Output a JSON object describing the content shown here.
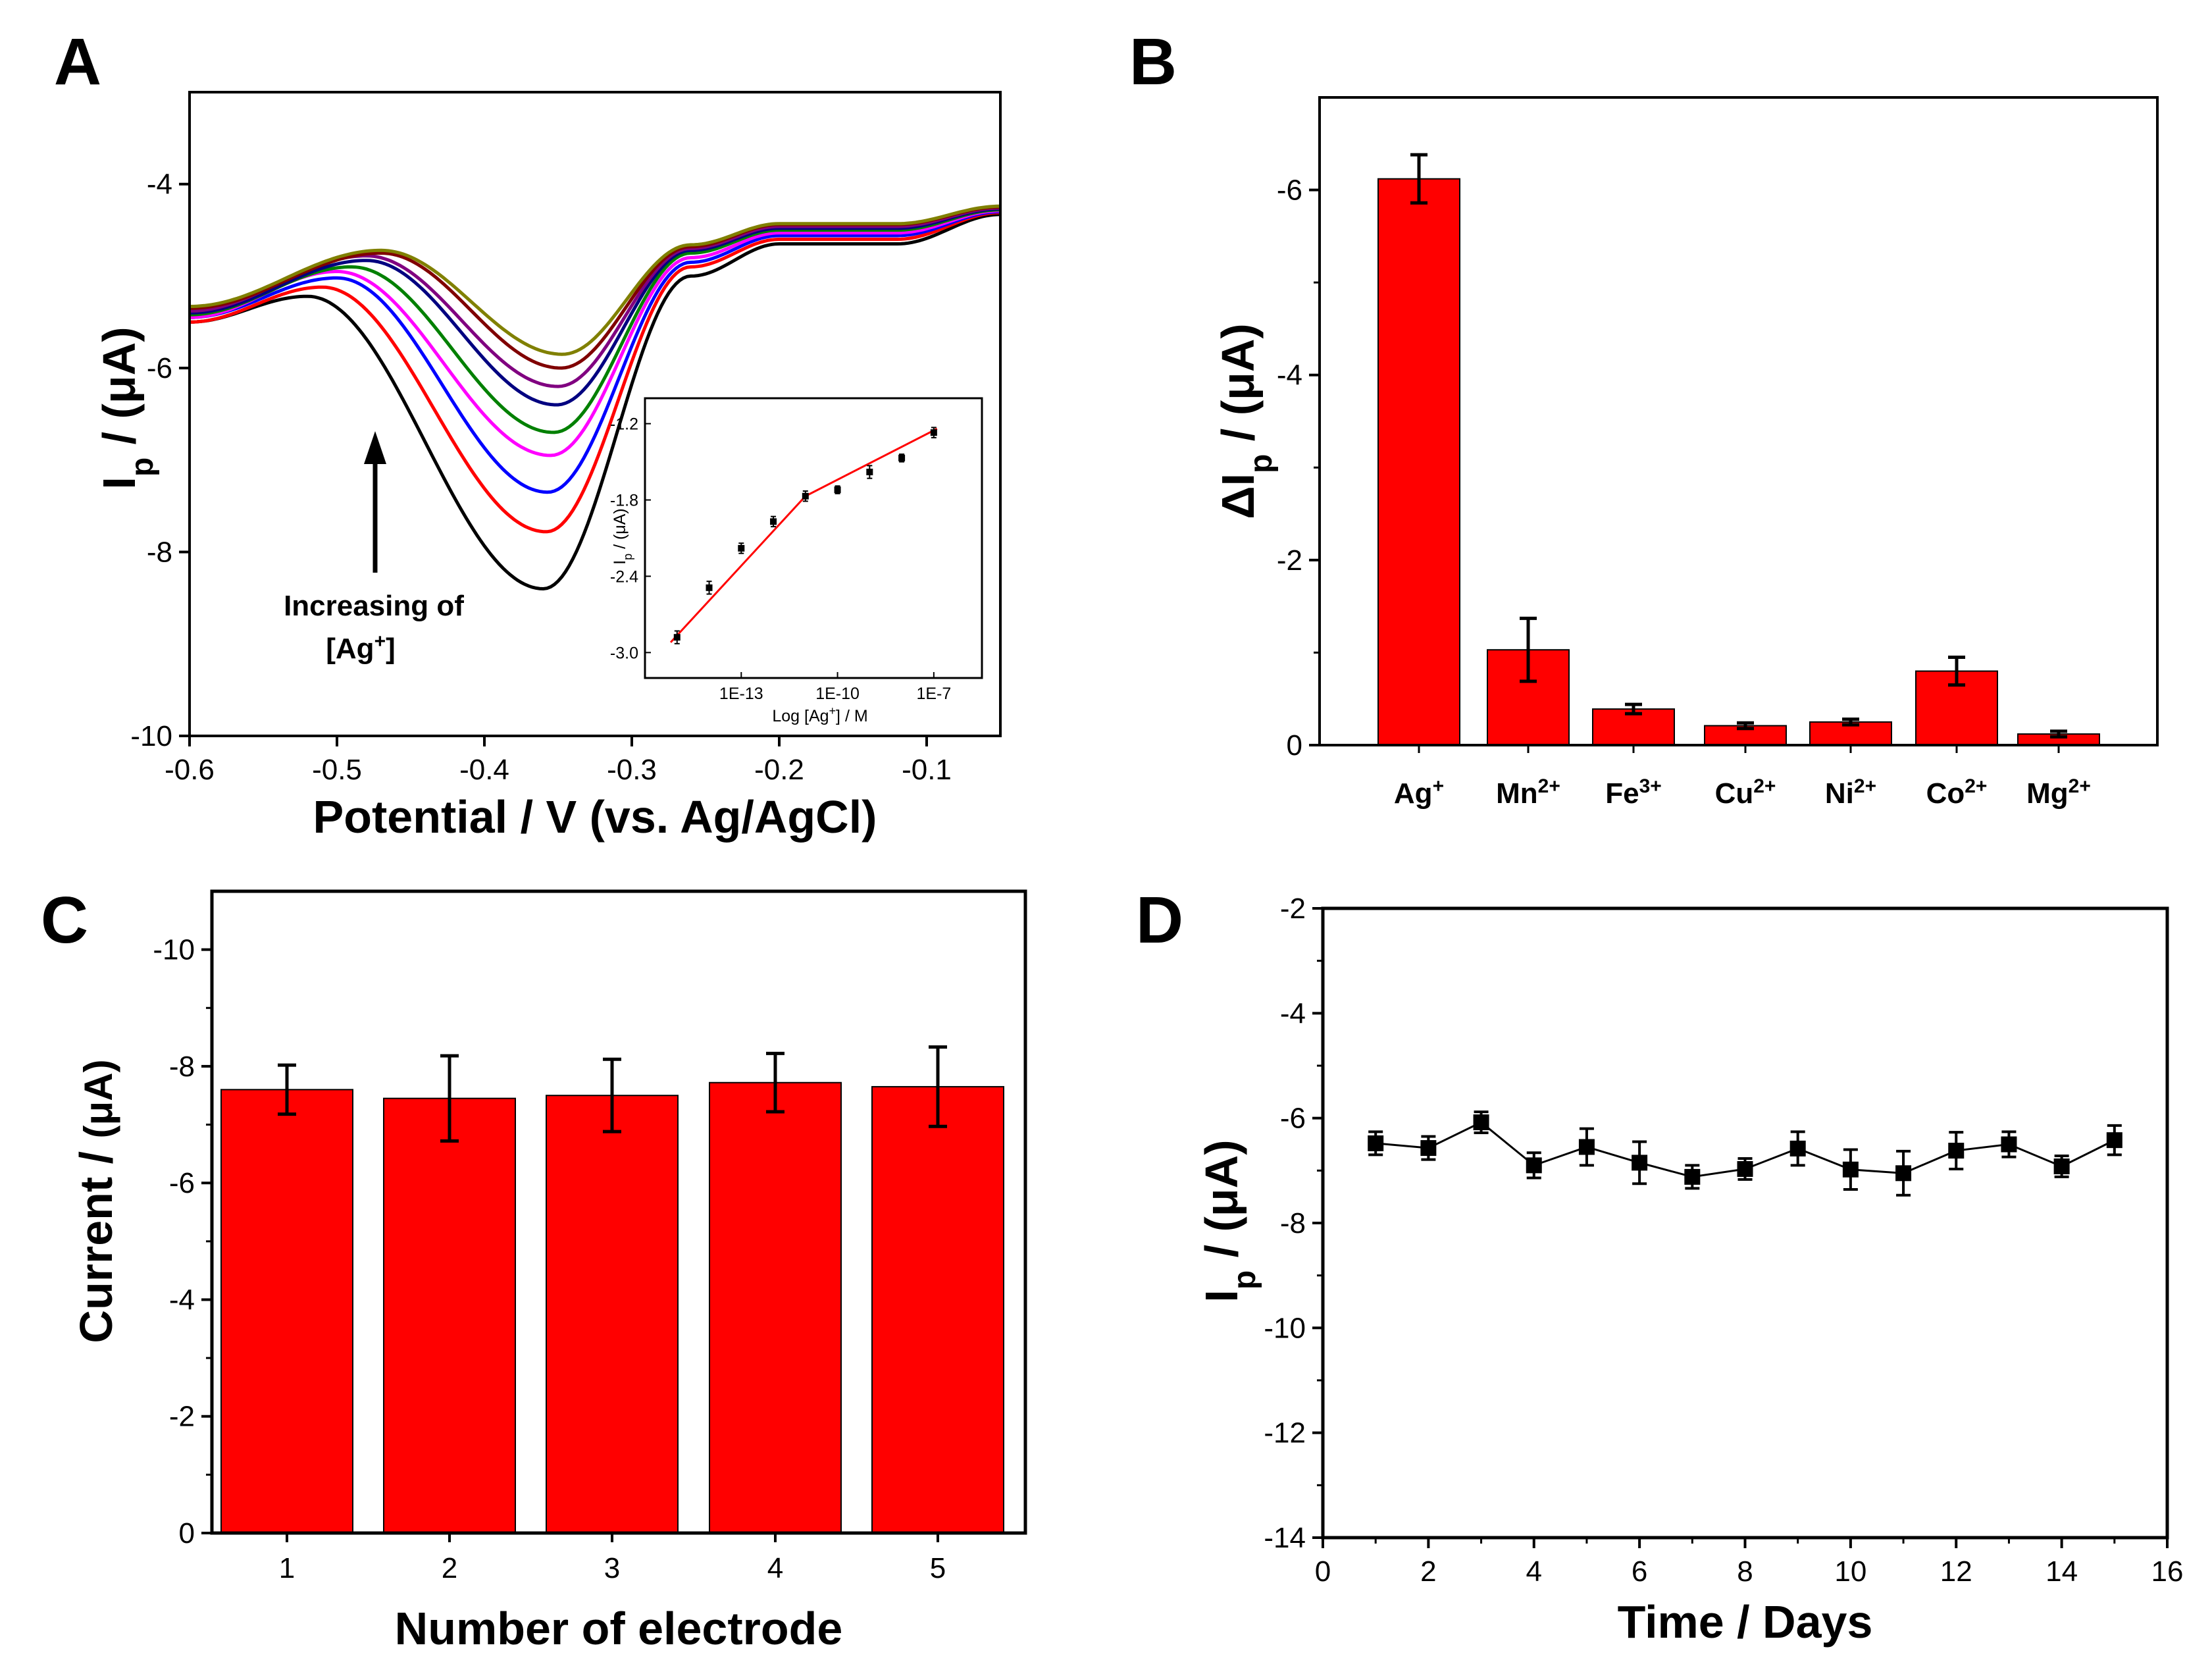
{
  "chart_data": [
    {
      "panel": "A",
      "type": "line",
      "xlabel": "Potential / V (vs. Ag/AgCl)",
      "ylabel": "I",
      "ylabel_sub": "p",
      "ylabel_unit": " / (μA)",
      "xlim": [
        -0.6,
        -0.05
      ],
      "ylim": [
        -10,
        -3
      ],
      "xticks": [
        -0.6,
        -0.5,
        -0.4,
        -0.3,
        -0.2,
        -0.1
      ],
      "xtick_labels": [
        "-0.6",
        "-0.5",
        "-0.4",
        "-0.3",
        "-0.2",
        "-0.1"
      ],
      "yticks": [
        -4,
        -6,
        -8,
        -10
      ],
      "ytick_labels": [
        "-4",
        "-6",
        "-8",
        "-10"
      ],
      "annotation_line1": "Increasing of",
      "annotation_line2_a": "[Ag",
      "annotation_line2_sup": "+",
      "annotation_line2_b": "]",
      "series": [
        {
          "name": "s1",
          "color": "#000000",
          "start": -5.5,
          "hump_x": -0.52,
          "hump_y": -5.22,
          "valley_x": -0.36,
          "valley_y": -8.4,
          "shoulder_x": -0.26,
          "shoulder_y": -5.0,
          "plateau_y": -4.65,
          "end": -4.33
        },
        {
          "name": "s2",
          "color": "#ff0000",
          "start": -5.5,
          "hump_x": -0.51,
          "hump_y": -5.12,
          "valley_x": -0.358,
          "valley_y": -7.78,
          "shoulder_x": -0.26,
          "shoulder_y": -4.9,
          "plateau_y": -4.6,
          "end": -4.31
        },
        {
          "name": "s3",
          "color": "#0000ff",
          "start": -5.45,
          "hump_x": -0.5,
          "hump_y": -5.02,
          "valley_x": -0.357,
          "valley_y": -7.35,
          "shoulder_x": -0.26,
          "shoulder_y": -4.85,
          "plateau_y": -4.56,
          "end": -4.3
        },
        {
          "name": "s4",
          "color": "#ff00ff",
          "start": -5.45,
          "hump_x": -0.5,
          "hump_y": -4.95,
          "valley_x": -0.355,
          "valley_y": -6.95,
          "shoulder_x": -0.26,
          "shoulder_y": -4.8,
          "plateau_y": -4.53,
          "end": -4.29
        },
        {
          "name": "s5",
          "color": "#008000",
          "start": -5.42,
          "hump_x": -0.49,
          "hump_y": -4.9,
          "valley_x": -0.353,
          "valley_y": -6.7,
          "shoulder_x": -0.26,
          "shoulder_y": -4.75,
          "plateau_y": -4.5,
          "end": -4.28
        },
        {
          "name": "s6",
          "color": "#000080",
          "start": -5.4,
          "hump_x": -0.48,
          "hump_y": -4.83,
          "valley_x": -0.351,
          "valley_y": -6.4,
          "shoulder_x": -0.26,
          "shoulder_y": -4.72,
          "plateau_y": -4.48,
          "end": -4.27
        },
        {
          "name": "s7",
          "color": "#800080",
          "start": -5.38,
          "hump_x": -0.48,
          "hump_y": -4.78,
          "valley_x": -0.35,
          "valley_y": -6.2,
          "shoulder_x": -0.26,
          "shoulder_y": -4.7,
          "plateau_y": -4.46,
          "end": -4.26
        },
        {
          "name": "s8",
          "color": "#800000",
          "start": -5.35,
          "hump_x": -0.47,
          "hump_y": -4.75,
          "valley_x": -0.348,
          "valley_y": -6.0,
          "shoulder_x": -0.26,
          "shoulder_y": -4.68,
          "plateau_y": -4.44,
          "end": -4.25
        },
        {
          "name": "s9",
          "color": "#808000",
          "start": -5.33,
          "hump_x": -0.47,
          "hump_y": -4.72,
          "valley_x": -0.347,
          "valley_y": -5.85,
          "shoulder_x": -0.26,
          "shoulder_y": -4.66,
          "plateau_y": -4.43,
          "end": -4.24
        }
      ],
      "inset": {
        "type": "scatter",
        "xlabel_a": "Log [Ag",
        "xlabel_sup": "+",
        "xlabel_b": "] / M",
        "ylabel_a": "I",
        "ylabel_sub": "p",
        "ylabel_b": " / (μA)",
        "xlim": [
          -16,
          -5.5
        ],
        "ylim": [
          -3.2,
          -1.0
        ],
        "xticks": [
          -13,
          -10,
          -7
        ],
        "xtick_labels": [
          "1E-13",
          "1E-10",
          "1E-7"
        ],
        "yticks": [
          -1.2,
          -1.8,
          -2.4,
          -3.0
        ],
        "ytick_labels": [
          "-1.2",
          "-1.8",
          "-2.4",
          "-3.0"
        ],
        "x": [
          -15,
          -14,
          -13,
          -12,
          -11,
          -10,
          -9,
          -8,
          -7
        ],
        "y": [
          -2.88,
          -2.49,
          -2.18,
          -1.97,
          -1.77,
          -1.72,
          -1.58,
          -1.47,
          -1.27
        ],
        "err": [
          0.05,
          0.05,
          0.04,
          0.04,
          0.04,
          0.03,
          0.05,
          0.03,
          0.04
        ],
        "fit_x": [
          -15.2,
          -11.0,
          -6.9
        ],
        "fit_y": [
          -2.92,
          -1.77,
          -1.24
        ]
      }
    },
    {
      "panel": "B",
      "type": "bar",
      "ylabel": "ΔI",
      "ylabel_sub": "p",
      "ylabel_unit": " / (μA)",
      "ylim": [
        0,
        -7
      ],
      "yticks": [
        0,
        -2,
        -4,
        -6
      ],
      "ytick_labels": [
        "0",
        "-2",
        "-4",
        "-6"
      ],
      "categories": [
        {
          "base": "Ag",
          "sup": "+"
        },
        {
          "base": "Mn",
          "sup": "2+"
        },
        {
          "base": "Fe",
          "sup": "3+"
        },
        {
          "base": "Cu",
          "sup": "2+"
        },
        {
          "base": "Ni",
          "sup": "2+"
        },
        {
          "base": "Co",
          "sup": "2+"
        },
        {
          "base": "Mg",
          "sup": "2+"
        }
      ],
      "values": [
        -6.12,
        -1.03,
        -0.39,
        -0.21,
        -0.25,
        -0.8,
        -0.12
      ],
      "errors": [
        0.26,
        0.34,
        0.05,
        0.03,
        0.03,
        0.15,
        0.03
      ],
      "bar_color": "#ff0000"
    },
    {
      "panel": "C",
      "type": "bar",
      "xlabel": "Number of electrode",
      "ylabel": "Current / ",
      "ylabel_unit": "(μA)",
      "ylim": [
        0,
        -11
      ],
      "yticks": [
        0,
        -2,
        -4,
        -6,
        -8,
        -10
      ],
      "ytick_labels": [
        "0",
        "-2",
        "-4",
        "-6",
        "-8",
        "-10"
      ],
      "categories": [
        "1",
        "2",
        "3",
        "4",
        "5"
      ],
      "values": [
        -7.6,
        -7.45,
        -7.5,
        -7.72,
        -7.65
      ],
      "errors": [
        0.42,
        0.73,
        0.62,
        0.5,
        0.68
      ],
      "bar_color": "#ff0000"
    },
    {
      "panel": "D",
      "type": "line",
      "xlabel": "Time / Days",
      "ylabel": "I",
      "ylabel_sub": "p",
      "ylabel_unit": " / (μA)",
      "xlim": [
        0,
        16
      ],
      "ylim": [
        -14,
        -2
      ],
      "xticks": [
        0,
        2,
        4,
        6,
        8,
        10,
        12,
        14,
        16
      ],
      "xtick_labels": [
        "0",
        "2",
        "4",
        "6",
        "8",
        "10",
        "12",
        "14",
        "16"
      ],
      "yticks": [
        -2,
        -4,
        -6,
        -8,
        -10,
        -12,
        -14
      ],
      "ytick_labels": [
        "-2",
        "-4",
        "-6",
        "-8",
        "-10",
        "-12",
        "-14"
      ],
      "x": [
        1,
        2,
        3,
        4,
        5,
        6,
        7,
        8,
        9,
        10,
        11,
        12,
        13,
        14,
        15
      ],
      "y": [
        -6.48,
        -6.57,
        -6.08,
        -6.9,
        -6.55,
        -6.85,
        -7.12,
        -6.97,
        -6.58,
        -6.98,
        -7.05,
        -6.62,
        -6.5,
        -6.92,
        -6.42
      ],
      "err": [
        0.22,
        0.22,
        0.2,
        0.24,
        0.35,
        0.4,
        0.22,
        0.2,
        0.32,
        0.38,
        0.42,
        0.35,
        0.24,
        0.2,
        0.28
      ]
    }
  ]
}
